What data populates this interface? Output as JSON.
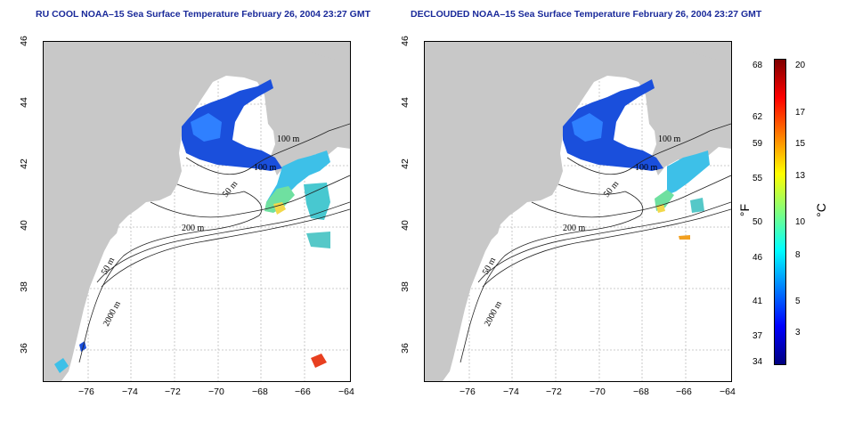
{
  "panels": [
    {
      "title": "RU COOL NOAA–15 Sea Surface Temperature February 26, 2004 23:27 GMT",
      "contour_labels": [
        "100 m",
        "100 m",
        "50 m",
        "200 m",
        "50 m",
        "2000 m"
      ]
    },
    {
      "title": "DECLOUDED NOAA–15 Sea Surface Temperature February 26, 2004 23:27 GMT",
      "contour_labels": [
        "100 m",
        "100 m",
        "50 m",
        "200 m",
        "50 m",
        "2000 m"
      ]
    }
  ],
  "axes": {
    "lon_ticks": [
      "−76",
      "−74",
      "−72",
      "−70",
      "−68",
      "−66",
      "−64"
    ],
    "lat_ticks": [
      "46",
      "44",
      "42",
      "40",
      "38",
      "36"
    ]
  },
  "colorbar": {
    "fahrenheit_ticks": [
      "68",
      "62",
      "59",
      "55",
      "50",
      "46",
      "41",
      "37",
      "34"
    ],
    "celsius_ticks": [
      "20",
      "17",
      "15",
      "13",
      "10",
      "8",
      "5",
      "3"
    ],
    "f_unit": "°F",
    "c_unit": "°C",
    "colors": [
      "#00007f",
      "#0000ff",
      "#007fff",
      "#00ffff",
      "#7fff7f",
      "#ffff00",
      "#ff7f00",
      "#ff0000",
      "#7f0000"
    ]
  },
  "colors": {
    "land": "#c8c8c8",
    "title": "#1a2a9a"
  }
}
